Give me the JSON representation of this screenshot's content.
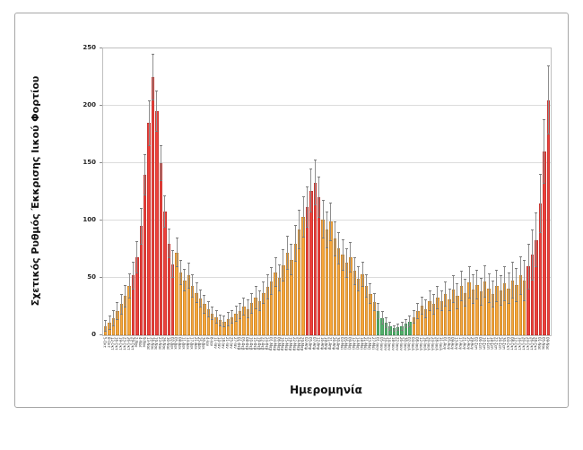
{
  "figure": {
    "title": "",
    "xlabel": "Ημερομηνία",
    "ylabel": "Σχετικός Ρυθμός Έκκρισης Ιικού Φορτίου"
  },
  "chart_data": {
    "type": "bar",
    "title": "",
    "xlabel": "Ημερομηνία",
    "ylabel": "Σχετικός Ρυθμός Έκκρισης Ιικού Φορτίου",
    "ylim": [
      0,
      250
    ],
    "yticks": [
      0,
      50,
      100,
      150,
      200,
      250
    ],
    "grid": true,
    "legend": false,
    "error_bars": true,
    "colors": {
      "red": "#ed403b",
      "orange": "#f6a63a",
      "green": "#4fb06a",
      "error": "#8f8f8f",
      "gridline": "#dcdcdc"
    },
    "columns": [
      "date",
      "value",
      "error",
      "color"
    ],
    "bars": [
      [
        "5-Οκτ",
        8,
        5,
        "orange"
      ],
      [
        "8-Οκτ",
        11,
        6,
        "orange"
      ],
      [
        "12-Οκτ",
        15,
        7,
        "orange"
      ],
      [
        "16-Οκτ",
        21,
        8,
        "orange"
      ],
      [
        "19-Οκτ",
        27,
        9,
        "orange"
      ],
      [
        "23-Οκτ",
        34,
        10,
        "orange"
      ],
      [
        "26-Οκτ",
        43,
        11,
        "orange"
      ],
      [
        "29-Οκτ",
        52,
        12,
        "red"
      ],
      [
        "2-Νοε",
        68,
        14,
        "red"
      ],
      [
        "4-Νοε",
        95,
        16,
        "red"
      ],
      [
        "9-Νοε",
        140,
        18,
        "red"
      ],
      [
        "13-Νοε",
        185,
        20,
        "red"
      ],
      [
        "16-Νοε",
        225,
        20,
        "red"
      ],
      [
        "19-Νοε",
        195,
        18,
        "red"
      ],
      [
        "23-Νοε",
        150,
        16,
        "red"
      ],
      [
        "26-Νοε",
        108,
        14,
        "red"
      ],
      [
        "30-Νοε",
        80,
        13,
        "red"
      ],
      [
        "02-Δεκ",
        62,
        12,
        "red"
      ],
      [
        "05-Δεκ",
        72,
        13,
        "orange"
      ],
      [
        "08-Δεκ",
        55,
        11,
        "orange"
      ],
      [
        "11-Δεκ",
        48,
        10,
        "orange"
      ],
      [
        "14-Δεκ",
        52,
        11,
        "orange"
      ],
      [
        "17-Δεκ",
        43,
        10,
        "orange"
      ],
      [
        "21-Δεκ",
        37,
        9,
        "orange"
      ],
      [
        "25-Δεκ",
        32,
        8,
        "orange"
      ],
      [
        "30-Δεκ",
        27,
        8,
        "orange"
      ],
      [
        "4-Ιαν",
        23,
        7,
        "orange"
      ],
      [
        "8-Ιαν",
        19,
        6,
        "orange"
      ],
      [
        "11-Ιαν",
        16,
        6,
        "orange"
      ],
      [
        "14-Ιαν",
        13,
        5,
        "orange"
      ],
      [
        "18-Ιαν",
        12,
        5,
        "orange"
      ],
      [
        "21-Ιαν",
        14,
        6,
        "orange"
      ],
      [
        "25-Ιαν",
        16,
        6,
        "orange"
      ],
      [
        "27-Ιαν",
        19,
        7,
        "orange"
      ],
      [
        "01-Φεβ",
        21,
        7,
        "orange"
      ],
      [
        "05-Φεβ",
        25,
        8,
        "orange"
      ],
      [
        "08-Φεβ",
        23,
        8,
        "orange"
      ],
      [
        "10-Φεβ",
        28,
        9,
        "orange"
      ],
      [
        "15-Φεβ",
        33,
        10,
        "orange"
      ],
      [
        "19-Φεβ",
        30,
        9,
        "orange"
      ],
      [
        "22-Φεβ",
        37,
        10,
        "orange"
      ],
      [
        "24-Φεβ",
        42,
        11,
        "orange"
      ],
      [
        "01-Μαρ",
        47,
        12,
        "orange"
      ],
      [
        "04-Μαρ",
        55,
        13,
        "orange"
      ],
      [
        "06-Μαρ",
        50,
        12,
        "orange"
      ],
      [
        "10-Μαρ",
        61,
        14,
        "orange"
      ],
      [
        "15-Μαρ",
        72,
        15,
        "orange"
      ],
      [
        "19-Μαρ",
        66,
        14,
        "orange"
      ],
      [
        "22-Μαρ",
        80,
        16,
        "orange"
      ],
      [
        "24-Μαρ",
        92,
        17,
        "orange"
      ],
      [
        "29-Μαρ",
        103,
        18,
        "orange"
      ],
      [
        "02-Απρ",
        112,
        18,
        "red"
      ],
      [
        "05-Απρ",
        126,
        19,
        "red"
      ],
      [
        "07-Απρ",
        133,
        20,
        "red"
      ],
      [
        "12-Απρ",
        120,
        18,
        "red"
      ],
      [
        "16-Απρ",
        101,
        17,
        "orange"
      ],
      [
        "19-Απρ",
        92,
        16,
        "orange"
      ],
      [
        "21-Απρ",
        99,
        17,
        "orange"
      ],
      [
        "26-Απρ",
        84,
        15,
        "orange"
      ],
      [
        "30-Απρ",
        76,
        14,
        "orange"
      ],
      [
        "03-Μαϊ",
        70,
        14,
        "orange"
      ],
      [
        "05-Μαϊ",
        63,
        13,
        "orange"
      ],
      [
        "09-Μαϊ",
        68,
        13,
        "orange"
      ],
      [
        "12-Μαϊ",
        56,
        12,
        "orange"
      ],
      [
        "14-Μαϊ",
        49,
        11,
        "orange"
      ],
      [
        "18-Μαϊ",
        53,
        11,
        "orange"
      ],
      [
        "21-Μαϊ",
        43,
        10,
        "orange"
      ],
      [
        "23-Μαϊ",
        36,
        9,
        "orange"
      ],
      [
        "27-Μαϊ",
        29,
        8,
        "orange"
      ],
      [
        "01-Ιουν",
        21,
        7,
        "green"
      ],
      [
        "05-Ιουν",
        15,
        6,
        "green"
      ],
      [
        "10-Ιουν",
        11,
        5,
        "green"
      ],
      [
        "14-Ιουν",
        8,
        4,
        "green"
      ],
      [
        "18-Ιουν",
        6,
        3,
        "green"
      ],
      [
        "22-Ιουν",
        7,
        3,
        "green"
      ],
      [
        "26-Ιουν",
        8,
        4,
        "green"
      ],
      [
        "30-Ιουν",
        10,
        4,
        "green"
      ],
      [
        "02-Ιουλ",
        12,
        5,
        "green"
      ],
      [
        "04-Ιουλ",
        16,
        6,
        "orange"
      ],
      [
        "08-Ιουλ",
        21,
        7,
        "orange"
      ],
      [
        "12-Ιουλ",
        26,
        8,
        "orange"
      ],
      [
        "16-Ιουλ",
        23,
        8,
        "orange"
      ],
      [
        "20-Ιουλ",
        30,
        9,
        "orange"
      ],
      [
        "24-Ιουλ",
        27,
        9,
        "orange"
      ],
      [
        "28-Ιουλ",
        33,
        10,
        "orange"
      ],
      [
        "31-Ιουλ",
        30,
        9,
        "orange"
      ],
      [
        "01-Αυγ",
        36,
        11,
        "orange"
      ],
      [
        "05-Αυγ",
        31,
        10,
        "orange"
      ],
      [
        "09-Αυγ",
        40,
        12,
        "orange"
      ],
      [
        "13-Αυγ",
        34,
        11,
        "orange"
      ],
      [
        "17-Αυγ",
        43,
        13,
        "orange"
      ],
      [
        "21-Αυγ",
        37,
        12,
        "orange"
      ],
      [
        "25-Αυγ",
        46,
        14,
        "orange"
      ],
      [
        "29-Αυγ",
        40,
        13,
        "orange"
      ],
      [
        "02-Σεπ",
        44,
        13,
        "orange"
      ],
      [
        "06-Σεπ",
        38,
        12,
        "orange"
      ],
      [
        "10-Σεπ",
        47,
        14,
        "orange"
      ],
      [
        "14-Σεπ",
        41,
        13,
        "orange"
      ],
      [
        "18-Σεπ",
        36,
        12,
        "orange"
      ],
      [
        "22-Σεπ",
        43,
        14,
        "orange"
      ],
      [
        "26-Σεπ",
        39,
        13,
        "orange"
      ],
      [
        "30-Σεπ",
        45,
        15,
        "orange"
      ],
      [
        "04-Οκτ",
        41,
        14,
        "orange"
      ],
      [
        "08-Οκτ",
        48,
        16,
        "orange"
      ],
      [
        "12-Οκτ",
        44,
        15,
        "orange"
      ],
      [
        "16-Οκτ",
        52,
        17,
        "orange"
      ],
      [
        "20-Οκτ",
        48,
        18,
        "orange"
      ],
      [
        "24-Οκτ",
        60,
        20,
        "red"
      ],
      [
        "26-Οκτ",
        70,
        22,
        "red"
      ],
      [
        "28-Οκτ",
        83,
        24,
        "red"
      ],
      [
        "01-Νοε",
        115,
        26,
        "red"
      ],
      [
        "05-Νοε",
        160,
        28,
        "red"
      ],
      [
        "09-Νοε",
        205,
        30,
        "red"
      ]
    ]
  }
}
